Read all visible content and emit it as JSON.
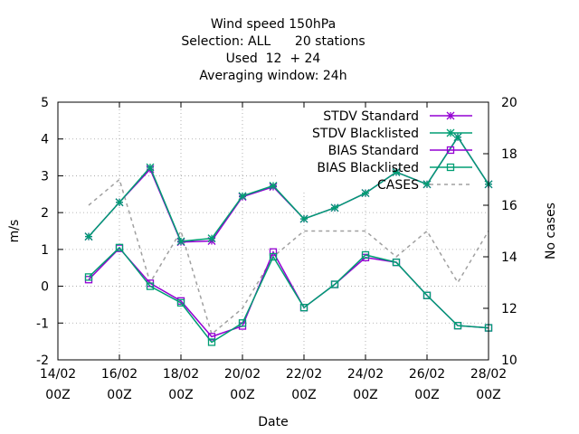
{
  "chart_data": {
    "type": "line",
    "title_lines": [
      "Wind speed 150hPa",
      "Selection: ALL      20 stations",
      "Used  12  + 24",
      "Averaging window: 24h"
    ],
    "xlabel": "Date",
    "ylabel": "m/s",
    "y2label": "No cases",
    "ylim": [
      -2,
      5
    ],
    "y2lim": [
      10,
      20
    ],
    "x_ticks": [
      {
        "day": 14,
        "label1": "14/02",
        "label2": "00Z"
      },
      {
        "day": 16,
        "label1": "16/02",
        "label2": "00Z"
      },
      {
        "day": 18,
        "label1": "18/02",
        "label2": "00Z"
      },
      {
        "day": 20,
        "label1": "20/02",
        "label2": "00Z"
      },
      {
        "day": 22,
        "label1": "22/02",
        "label2": "00Z"
      },
      {
        "day": 24,
        "label1": "24/02",
        "label2": "00Z"
      },
      {
        "day": 26,
        "label1": "26/02",
        "label2": "00Z"
      },
      {
        "day": 28,
        "label1": "28/02",
        "label2": "00Z"
      }
    ],
    "x_range_days": [
      14,
      28
    ],
    "y_ticks": [
      "-2",
      "-1",
      "0",
      "1",
      "2",
      "3",
      "4",
      "5"
    ],
    "y2_ticks": [
      "10",
      "12",
      "14",
      "16",
      "18",
      "20"
    ],
    "grid": true,
    "legend_position": "top-right",
    "x_days": [
      15,
      16,
      17,
      18,
      19,
      20,
      21,
      22,
      23,
      24,
      25,
      26,
      27,
      28
    ],
    "series": [
      {
        "name": "STDV Standard",
        "axis": "y1",
        "color": "#9400d3",
        "marker": "star",
        "dash": false,
        "values": [
          1.35,
          2.28,
          3.18,
          1.2,
          1.23,
          2.43,
          2.7,
          1.83,
          2.13,
          2.53,
          3.1,
          2.77,
          4.05,
          2.77
        ]
      },
      {
        "name": "STDV Blacklisted",
        "axis": "y1",
        "color": "#009e73",
        "marker": "star",
        "dash": false,
        "values": [
          1.35,
          2.28,
          3.23,
          1.22,
          1.3,
          2.45,
          2.73,
          1.83,
          2.13,
          2.53,
          3.1,
          2.77,
          4.05,
          2.77
        ]
      },
      {
        "name": "BIAS Standard",
        "axis": "y1",
        "color": "#9400d3",
        "marker": "square",
        "dash": false,
        "values": [
          0.18,
          1.03,
          0.08,
          -0.4,
          -1.37,
          -1.08,
          0.93,
          -0.58,
          0.05,
          0.78,
          0.65,
          -0.25,
          -1.07,
          -1.13
        ]
      },
      {
        "name": "BIAS Blacklisted",
        "axis": "y1",
        "color": "#009e73",
        "marker": "square",
        "dash": false,
        "values": [
          0.25,
          1.05,
          0.0,
          -0.45,
          -1.52,
          -1.0,
          0.8,
          -0.58,
          0.05,
          0.85,
          0.65,
          -0.25,
          -1.07,
          -1.13
        ]
      },
      {
        "name": "CASES",
        "axis": "y2",
        "color": "#a0a0a0",
        "marker": "none",
        "dash": true,
        "values": [
          16,
          17,
          13,
          15,
          11,
          12,
          14,
          15,
          15,
          15,
          14,
          15,
          13,
          15
        ]
      }
    ]
  }
}
